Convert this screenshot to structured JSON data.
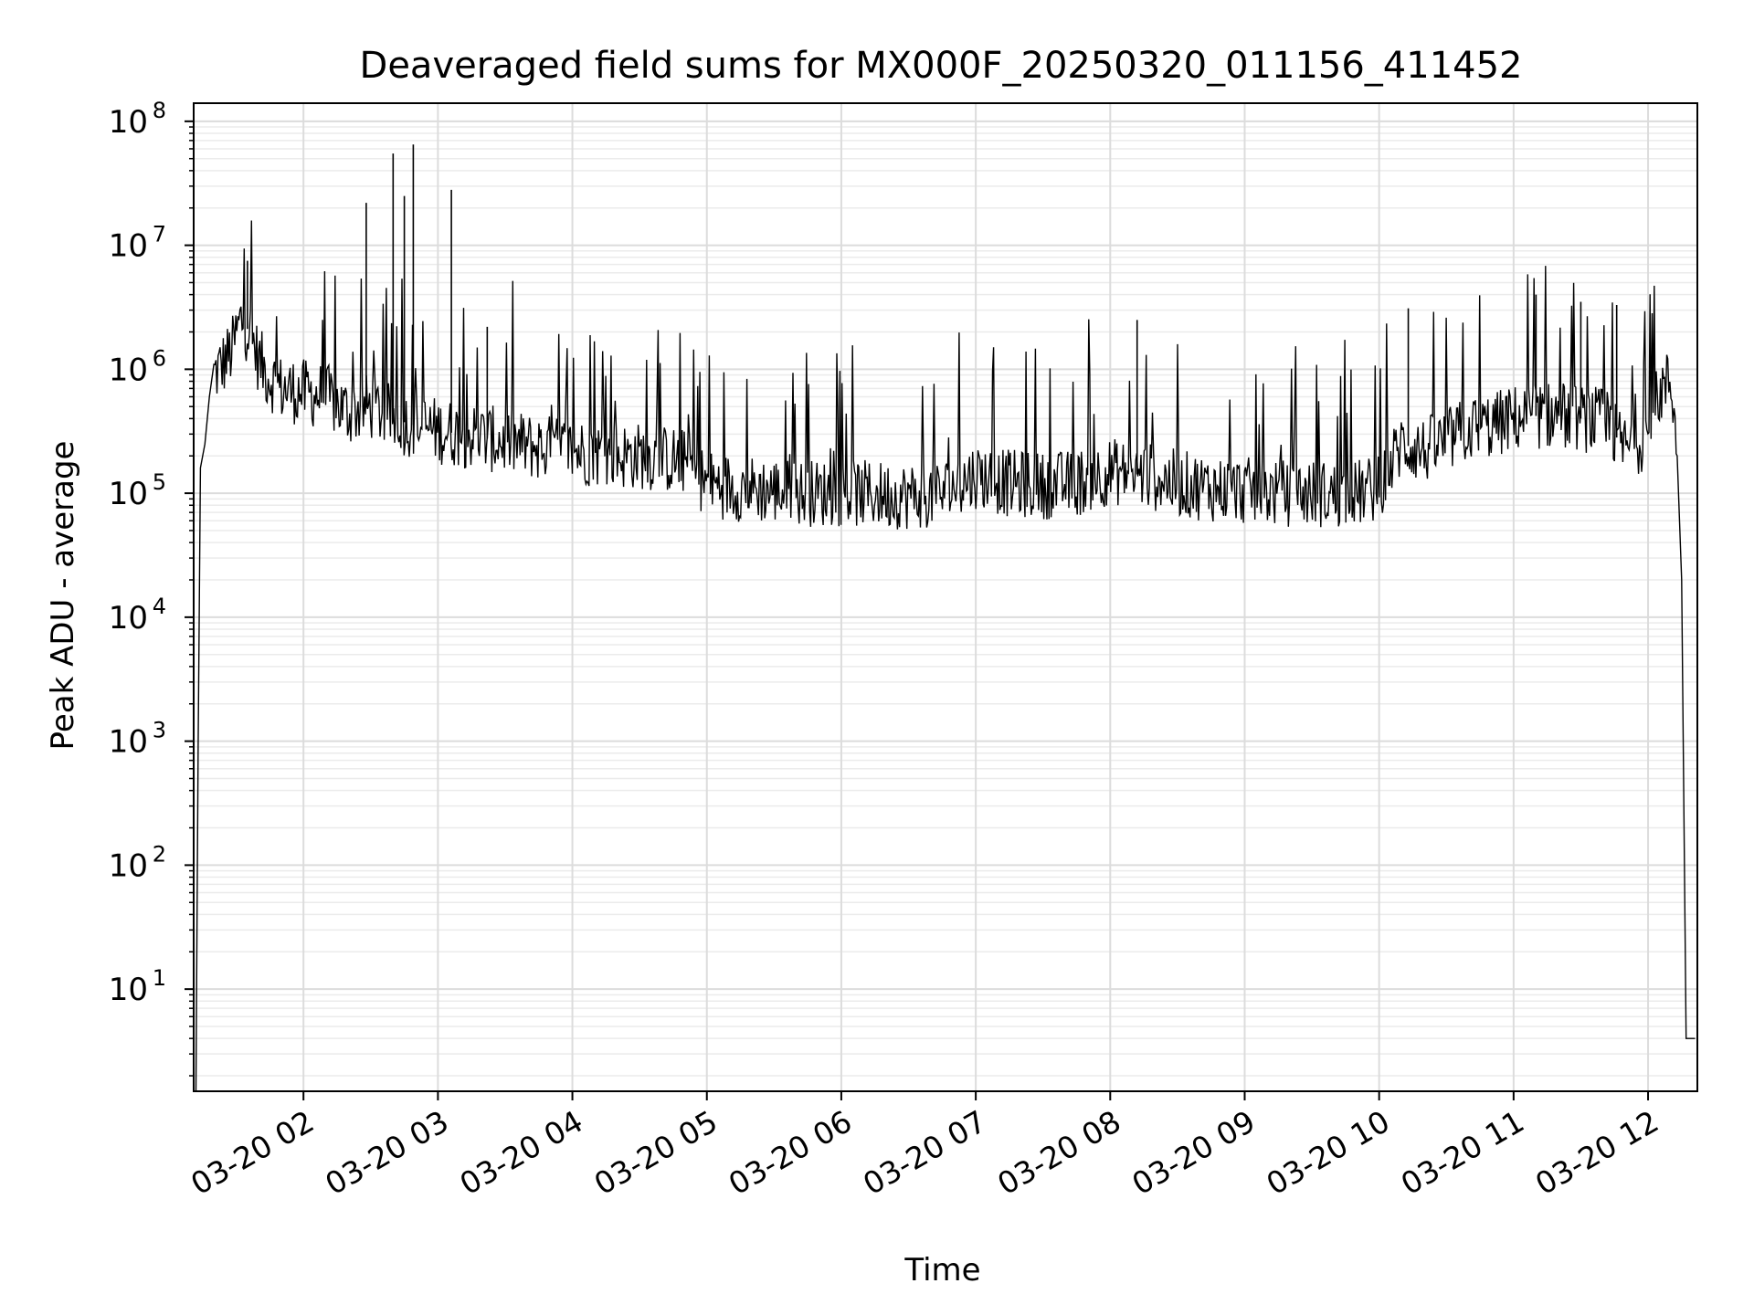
{
  "chart_data": {
    "type": "line",
    "title": "Deaveraged field sums for MX000F_20250320_011156_411452",
    "xlabel": "Time",
    "ylabel": "Peak ADU - average",
    "yscale": "log",
    "ylim": [
      1.5,
      140000000
    ],
    "xlim": [
      "2025-03-20 01:11",
      "2025-03-20 12:22"
    ],
    "grid": "on (major and minor)",
    "line_color": "#000000",
    "x_ticks": [
      {
        "time": "2025-03-20 02:00",
        "label": "03-20 02"
      },
      {
        "time": "2025-03-20 03:00",
        "label": "03-20 03"
      },
      {
        "time": "2025-03-20 04:00",
        "label": "03-20 04"
      },
      {
        "time": "2025-03-20 05:00",
        "label": "03-20 05"
      },
      {
        "time": "2025-03-20 06:00",
        "label": "03-20 06"
      },
      {
        "time": "2025-03-20 07:00",
        "label": "03-20 07"
      },
      {
        "time": "2025-03-20 08:00",
        "label": "03-20 08"
      },
      {
        "time": "2025-03-20 09:00",
        "label": "03-20 09"
      },
      {
        "time": "2025-03-20 10:00",
        "label": "03-20 10"
      },
      {
        "time": "2025-03-20 11:00",
        "label": "03-20 11"
      },
      {
        "time": "2025-03-20 12:00",
        "label": "03-20 12"
      }
    ],
    "y_ticks": [
      {
        "value": 10,
        "base": "10",
        "exp": "1"
      },
      {
        "value": 100,
        "base": "10",
        "exp": "2"
      },
      {
        "value": 1000,
        "base": "10",
        "exp": "3"
      },
      {
        "value": 10000,
        "base": "10",
        "exp": "4"
      },
      {
        "value": 100000,
        "base": "10",
        "exp": "5"
      },
      {
        "value": 1000000,
        "base": "10",
        "exp": "6"
      },
      {
        "value": 10000000,
        "base": "10",
        "exp": "7"
      },
      {
        "value": 100000000,
        "base": "10",
        "exp": "8"
      }
    ],
    "series": [
      {
        "x": [
          "2025-03-20 01:12",
          "2025-03-20 01:13",
          "2025-03-20 01:14",
          "2025-03-20 01:16",
          "2025-03-20 01:18",
          "2025-03-20 01:20",
          "2025-03-20 01:24",
          "2025-03-20 01:28",
          "2025-03-20 01:32",
          "2025-03-20 01:36",
          "2025-03-20 01:40",
          "2025-03-20 01:44",
          "2025-03-20 01:50",
          "2025-03-20 02:00",
          "2025-03-20 02:10",
          "2025-03-20 02:20",
          "2025-03-20 02:30",
          "2025-03-20 02:40",
          "2025-03-20 02:50",
          "2025-03-20 03:00",
          "2025-03-20 03:10",
          "2025-03-20 03:20",
          "2025-03-20 03:30",
          "2025-03-20 03:40",
          "2025-03-20 03:50",
          "2025-03-20 04:00",
          "2025-03-20 04:10",
          "2025-03-20 04:20",
          "2025-03-20 04:30",
          "2025-03-20 04:40",
          "2025-03-20 04:50",
          "2025-03-20 05:00",
          "2025-03-20 05:15",
          "2025-03-20 05:30",
          "2025-03-20 05:45",
          "2025-03-20 06:00",
          "2025-03-20 06:15",
          "2025-03-20 06:30",
          "2025-03-20 06:45",
          "2025-03-20 07:00",
          "2025-03-20 07:15",
          "2025-03-20 07:30",
          "2025-03-20 07:45",
          "2025-03-20 08:00",
          "2025-03-20 08:15",
          "2025-03-20 08:30",
          "2025-03-20 08:45",
          "2025-03-20 09:00",
          "2025-03-20 09:15",
          "2025-03-20 09:30",
          "2025-03-20 09:45",
          "2025-03-20 10:00",
          "2025-03-20 10:10",
          "2025-03-20 10:20",
          "2025-03-20 10:30",
          "2025-03-20 10:40",
          "2025-03-20 10:50",
          "2025-03-20 11:00",
          "2025-03-20 11:10",
          "2025-03-20 11:20",
          "2025-03-20 11:30",
          "2025-03-20 11:40",
          "2025-03-20 11:50",
          "2025-03-20 12:00",
          "2025-03-20 12:05",
          "2025-03-20 12:10",
          "2025-03-20 12:13",
          "2025-03-20 12:15",
          "2025-03-20 12:17",
          "2025-03-20 12:19",
          "2025-03-20 12:21"
        ],
        "y": [
          1.5,
          900,
          160000,
          250000,
          600000,
          900000,
          1100000,
          1400000,
          2500000,
          2000000,
          1200000,
          900000,
          700000,
          650000,
          600000,
          450000,
          500000,
          400000,
          350000,
          320000,
          300000,
          280000,
          260000,
          240000,
          230000,
          220000,
          210000,
          200000,
          200000,
          190000,
          180000,
          120000,
          110000,
          105000,
          100000,
          100000,
          98000,
          95000,
          100000,
          140000,
          120000,
          115000,
          120000,
          150000,
          140000,
          120000,
          110000,
          105000,
          100000,
          100000,
          95000,
          110000,
          250000,
          220000,
          260000,
          330000,
          350000,
          400000,
          420000,
          430000,
          400000,
          380000,
          230000,
          300000,
          650000,
          800000,
          300000,
          20000,
          4,
          4,
          4
        ]
      }
    ],
    "spikes": [
      {
        "x": "2025-03-20 02:28",
        "y": 22000000
      },
      {
        "x": "2025-03-20 02:40",
        "y": 55000000
      },
      {
        "x": "2025-03-20 02:45",
        "y": 25000000
      },
      {
        "x": "2025-03-20 02:49",
        "y": 65000000
      },
      {
        "x": "2025-03-20 03:06",
        "y": 28000000
      },
      {
        "x": "2025-03-20 01:35",
        "y": 7500000
      },
      {
        "x": "2025-03-20 03:22",
        "y": 2200000
      },
      {
        "x": "2025-03-20 08:12",
        "y": 2500000
      },
      {
        "x": "2025-03-20 10:13",
        "y": 3100000
      },
      {
        "x": "2025-03-20 11:10",
        "y": 4000000
      },
      {
        "x": "2025-03-20 11:30",
        "y": 3500000
      },
      {
        "x": "2025-03-20 11:46",
        "y": 3300000
      }
    ]
  }
}
